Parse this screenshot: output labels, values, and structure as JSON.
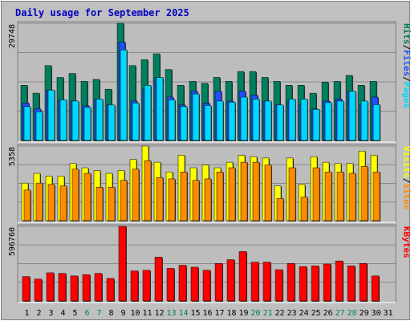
{
  "chart_data": {
    "type": "bar",
    "title": "Daily usage for September 2025",
    "colors": {
      "title": "#0000c0",
      "background": "#c0c0c0",
      "plot": "#bdbdbd",
      "hits": "#007f5f",
      "files": "#1f4fff",
      "pages": "#00d8ff",
      "visits": "#ffff00",
      "sites": "#ff8c00",
      "kbytes": "#ff0000",
      "weekend_label": "#008060",
      "weekday_label": "#000000",
      "separator": "#000000"
    },
    "x": [
      "1",
      "2",
      "3",
      "4",
      "5",
      "6",
      "7",
      "8",
      "9",
      "10",
      "11",
      "12",
      "13",
      "14",
      "15",
      "16",
      "17",
      "18",
      "19",
      "20",
      "21",
      "22",
      "23",
      "24",
      "25",
      "26",
      "27",
      "28",
      "29",
      "30",
      "31"
    ],
    "weekend_days": [
      "6",
      "7",
      "13",
      "14",
      "20",
      "21",
      "27",
      "28"
    ],
    "panels": [
      {
        "id": "hits-files-pages",
        "ymax_label": "29748",
        "ylim": [
          0,
          29748
        ],
        "series": [
          {
            "name": "Hits",
            "values": [
              14000,
              12000,
              19000,
              16000,
              17000,
              15000,
              15500,
              13000,
              29748,
              19000,
              20500,
              22000,
              18000,
              14000,
              15000,
              14500,
              16000,
              15000,
              17500,
              17500,
              16000,
              15000,
              14000,
              14000,
              12000,
              14800,
              15000,
              16500,
              14000,
              15000,
              null
            ]
          },
          {
            "name": "Files",
            "values": [
              9500,
              8000,
              12800,
              10300,
              10000,
              8800,
              10500,
              9000,
              25000,
              10000,
              13000,
              16000,
              11000,
              9000,
              12500,
              9500,
              12500,
              10000,
              12500,
              11500,
              10000,
              9000,
              10000,
              9000,
              8000,
              10000,
              10500,
              12500,
              9300,
              11000,
              null
            ]
          },
          {
            "name": "Pages",
            "values": [
              8600,
              7300,
              12800,
              10300,
              10000,
              8400,
              10500,
              9000,
              23000,
              9500,
              14000,
              16000,
              10300,
              8600,
              11800,
              8900,
              10000,
              9700,
              11000,
              10500,
              10000,
              9000,
              10500,
              10500,
              7900,
              9600,
              10000,
              12500,
              10000,
              9100,
              null
            ]
          }
        ]
      },
      {
        "id": "visits-sites",
        "ymax_label": "5358",
        "ylim": [
          0,
          5358
        ],
        "series": [
          {
            "name": "Visits",
            "values": [
              2700,
              3400,
              3200,
              3200,
              4100,
              3800,
              3600,
              3400,
              3600,
              4400,
              5358,
              4200,
              3500,
              4700,
              3800,
              4000,
              3800,
              4200,
              4700,
              4600,
              4500,
              2500,
              4500,
              2600,
              4600,
              4200,
              4100,
              4100,
              5000,
              4700,
              null
            ]
          },
          {
            "name": "Sites",
            "values": [
              2200,
              2700,
              2600,
              2500,
              3700,
              3400,
              2400,
              2400,
              2900,
              3700,
              4300,
              3100,
              3000,
              3500,
              2900,
              3000,
              3500,
              3800,
              4200,
              4200,
              4000,
              1600,
              3800,
              1700,
              3800,
              3500,
              3500,
              3400,
              3900,
              3500,
              null
            ]
          }
        ]
      },
      {
        "id": "kbytes",
        "ymax_label": "596760",
        "ylim": [
          0,
          596760
        ],
        "series": [
          {
            "name": "KBytes",
            "values": [
              195000,
              175000,
              225000,
              220000,
              200000,
              210000,
              220000,
              180000,
              596760,
              240000,
              245000,
              350000,
              260000,
              285000,
              270000,
              245000,
              300000,
              330000,
              395000,
              310000,
              310000,
              250000,
              300000,
              275000,
              280000,
              295000,
              320000,
              280000,
              300000,
              200000,
              null
            ]
          }
        ]
      }
    ],
    "legends": [
      {
        "panel": "hits-files-pages",
        "parts": [
          {
            "text": "Pages",
            "color_key": "pages"
          },
          {
            "text": "/",
            "color_key": "separator"
          },
          {
            "text": "Files",
            "color_key": "files"
          },
          {
            "text": "/",
            "color_key": "separator"
          },
          {
            "text": "Hits",
            "color_key": "hits"
          }
        ]
      },
      {
        "panel": "visits-sites",
        "parts": [
          {
            "text": "Sites",
            "color_key": "sites"
          },
          {
            "text": "/",
            "color_key": "separator"
          },
          {
            "text": "Visits",
            "color_key": "visits"
          }
        ]
      },
      {
        "panel": "kbytes",
        "parts": [
          {
            "text": "KBytes",
            "color_key": "kbytes"
          }
        ]
      }
    ]
  }
}
